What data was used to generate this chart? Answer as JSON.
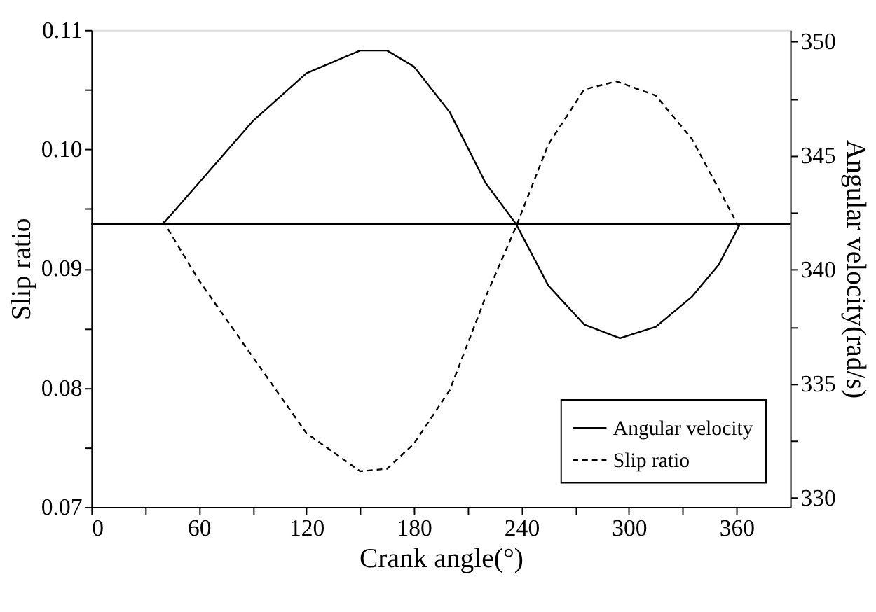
{
  "chart_data": {
    "type": "line",
    "xlabel": "Crank angle(°)",
    "ylabel": "Slip ratio",
    "y2label": "Angular velocity(rad/s)",
    "xlim": [
      0,
      390
    ],
    "xticks": [
      0,
      {
        "value": 30,
        "label": null
      },
      60,
      {
        "value": 90,
        "label": null
      },
      120,
      {
        "value": 150,
        "label": null
      },
      180,
      {
        "value": 210,
        "label": null
      },
      240,
      {
        "value": 270,
        "label": null
      },
      300,
      {
        "value": 330,
        "label": null
      },
      360
    ],
    "ylim": [
      0.07,
      0.11
    ],
    "yticks": [
      {
        "value": 0.07,
        "label": "0.07"
      },
      {
        "value": 0.075,
        "label": null
      },
      {
        "value": 0.08,
        "label": "0.08"
      },
      {
        "value": 0.085,
        "label": null
      },
      {
        "value": 0.09,
        "label": "0.09"
      },
      {
        "value": 0.095,
        "label": null
      },
      {
        "value": 0.1,
        "label": "0.10"
      },
      {
        "value": 0.105,
        "label": null
      },
      {
        "value": 0.11,
        "label": "0.11"
      }
    ],
    "y2lim": [
      329.6,
      350.5
    ],
    "y2ticks": [
      330,
      {
        "value": 332.5,
        "label": null
      },
      335,
      {
        "value": 337.5,
        "label": null
      },
      340,
      {
        "value": 342.5,
        "label": null
      },
      345,
      {
        "value": 347.5,
        "label": null
      },
      350
    ],
    "legend": "bottom right",
    "grid": false,
    "marker": "none",
    "ref_lines": [
      {
        "axis": "y2",
        "value": 342,
        "color": "#000000",
        "line_style": "solid"
      }
    ],
    "series": [
      {
        "name": "Angular velocity",
        "color": "#000000",
        "axis": "y2",
        "line_style": "solid",
        "x": [
          40,
          60,
          90,
          120,
          150,
          165,
          180,
          200,
          220,
          237,
          255,
          275,
          295,
          315,
          335,
          350,
          362
        ],
        "values": [
          342,
          343.8,
          346.5,
          348.6,
          349.6,
          349.6,
          348.9,
          346.9,
          343.8,
          342,
          339.3,
          337.6,
          337.0,
          337.5,
          338.8,
          340.2,
          342
        ]
      },
      {
        "name": "Slip ratio",
        "color": "#000000",
        "line_style": "dashed",
        "x": [
          40,
          60,
          90,
          120,
          150,
          165,
          180,
          200,
          220,
          237,
          255,
          275,
          293,
          315,
          335,
          350,
          362
        ],
        "values": [
          0.094,
          0.089,
          0.0826,
          0.0762,
          0.073,
          0.0732,
          0.0753,
          0.0798,
          0.0876,
          0.0935,
          0.1004,
          0.105,
          0.1057,
          0.1045,
          0.1009,
          0.0967,
          0.0933
        ]
      }
    ]
  }
}
